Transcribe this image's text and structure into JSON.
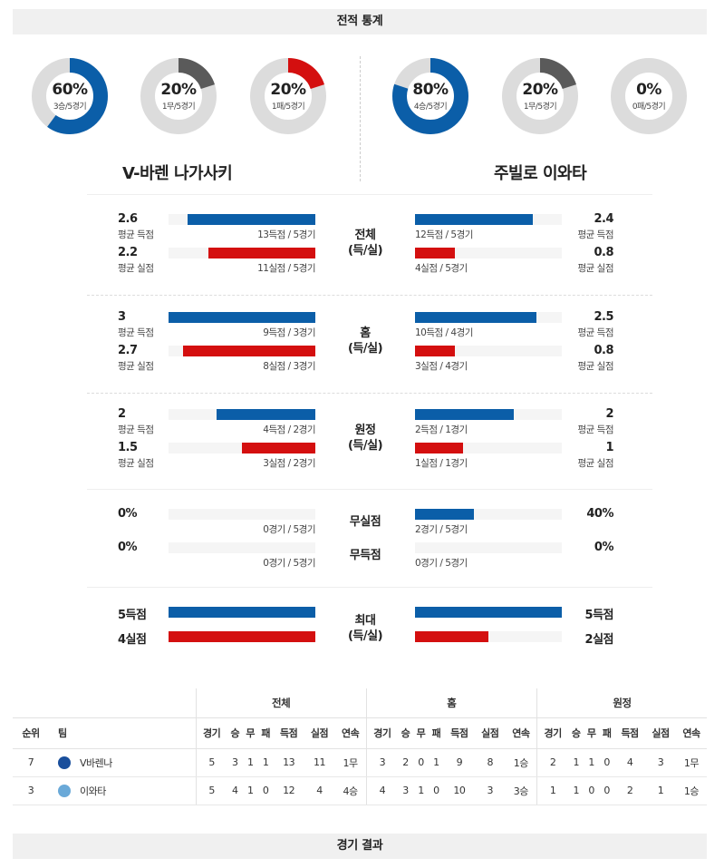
{
  "sections": {
    "stats_title": "전적 통계",
    "results_title": "경기 결과"
  },
  "colors": {
    "blue": "#0b5ea8",
    "red": "#d40f0f",
    "gray": "#5a5a5a",
    "track": "#dcdcdc"
  },
  "teams": {
    "home": {
      "name": "V-바렌 나가사키",
      "donuts": [
        {
          "pct": "60%",
          "sub": "3승/5경기",
          "value": 0.6,
          "color": "#0b5ea8"
        },
        {
          "pct": "20%",
          "sub": "1무/5경기",
          "value": 0.2,
          "color": "#5a5a5a"
        },
        {
          "pct": "20%",
          "sub": "1패/5경기",
          "value": 0.2,
          "color": "#d40f0f"
        }
      ]
    },
    "away": {
      "name": "주빌로 이와타",
      "donuts": [
        {
          "pct": "80%",
          "sub": "4승/5경기",
          "value": 0.8,
          "color": "#0b5ea8"
        },
        {
          "pct": "20%",
          "sub": "1무/5경기",
          "value": 0.2,
          "color": "#5a5a5a"
        },
        {
          "pct": "0%",
          "sub": "0패/5경기",
          "value": 0.0,
          "color": "#d40f0f"
        }
      ]
    }
  },
  "groups": [
    {
      "cat1": "전체",
      "cat2": "(득/실)",
      "rows": [
        {
          "lval": "2.6",
          "llbl": "평균 득점",
          "lcnt": "13득점 / 5경기",
          "lfrac": 0.87,
          "rval": "2.4",
          "rlbl": "평균 득점",
          "rcnt": "12득점 / 5경기",
          "rfrac": 0.8,
          "color": "blue"
        },
        {
          "lval": "2.2",
          "llbl": "평균 실점",
          "lcnt": "11실점 / 5경기",
          "lfrac": 0.73,
          "rval": "0.8",
          "rlbl": "평균 실점",
          "rcnt": "4실점 / 5경기",
          "rfrac": 0.27,
          "color": "red"
        }
      ]
    },
    {
      "cat1": "홈",
      "cat2": "(득/실)",
      "rows": [
        {
          "lval": "3",
          "llbl": "평균 득점",
          "lcnt": "9득점 / 3경기",
          "lfrac": 1.0,
          "rval": "2.5",
          "rlbl": "평균 득점",
          "rcnt": "10득점 / 4경기",
          "rfrac": 0.83,
          "color": "blue"
        },
        {
          "lval": "2.7",
          "llbl": "평균 실점",
          "lcnt": "8실점 / 3경기",
          "lfrac": 0.9,
          "rval": "0.8",
          "rlbl": "평균 실점",
          "rcnt": "3실점 / 4경기",
          "rfrac": 0.27,
          "color": "red"
        }
      ]
    },
    {
      "cat1": "원정",
      "cat2": "(득/실)",
      "rows": [
        {
          "lval": "2",
          "llbl": "평균 득점",
          "lcnt": "4득점 / 2경기",
          "lfrac": 0.67,
          "rval": "2",
          "rlbl": "평균 득점",
          "rcnt": "2득점 / 1경기",
          "rfrac": 0.67,
          "color": "blue"
        },
        {
          "lval": "1.5",
          "llbl": "평균 실점",
          "lcnt": "3실점 / 2경기",
          "lfrac": 0.5,
          "rval": "1",
          "rlbl": "평균 실점",
          "rcnt": "1실점 / 1경기",
          "rfrac": 0.33,
          "color": "red"
        }
      ]
    }
  ],
  "clean": {
    "rows": [
      {
        "cat": "무실점",
        "lval": "0%",
        "lcnt": "0경기 / 5경기",
        "lfrac": 0.0,
        "rval": "40%",
        "rcnt": "2경기 / 5경기",
        "rfrac": 0.4,
        "color": "blue"
      },
      {
        "cat": "무득점",
        "lval": "0%",
        "lcnt": "0경기 / 5경기",
        "lfrac": 0.0,
        "rval": "0%",
        "rcnt": "0경기 / 5경기",
        "rfrac": 0.0,
        "color": "blue"
      }
    ]
  },
  "max": {
    "cat1": "최대",
    "cat2": "(득/실)",
    "rows": [
      {
        "lval": "5득점",
        "lfrac": 1.0,
        "rval": "5득점",
        "rfrac": 1.0,
        "color": "blue"
      },
      {
        "lval": "4실점",
        "lfrac": 1.0,
        "rval": "2실점",
        "rfrac": 0.5,
        "color": "red"
      }
    ]
  },
  "standings": {
    "groups": [
      "전체",
      "홈",
      "원정"
    ],
    "rank_label": "순위",
    "team_label": "팀",
    "cols": [
      "경기",
      "승",
      "무",
      "패",
      "득점",
      "실점",
      "연속"
    ],
    "rows": [
      {
        "rank": "7",
        "team": "V바렌나",
        "logo_color": "#1a4f9c",
        "all": [
          "5",
          "3",
          "1",
          "1",
          "13",
          "11",
          "1무"
        ],
        "home": [
          "3",
          "2",
          "0",
          "1",
          "9",
          "8",
          "1승"
        ],
        "away": [
          "2",
          "1",
          "1",
          "0",
          "4",
          "3",
          "1무"
        ]
      },
      {
        "rank": "3",
        "team": "이와타",
        "logo_color": "#6aa9d8",
        "all": [
          "5",
          "4",
          "1",
          "0",
          "12",
          "4",
          "4승"
        ],
        "home": [
          "4",
          "3",
          "1",
          "0",
          "10",
          "3",
          "3승"
        ],
        "away": [
          "1",
          "1",
          "0",
          "0",
          "2",
          "1",
          "1승"
        ]
      }
    ]
  }
}
